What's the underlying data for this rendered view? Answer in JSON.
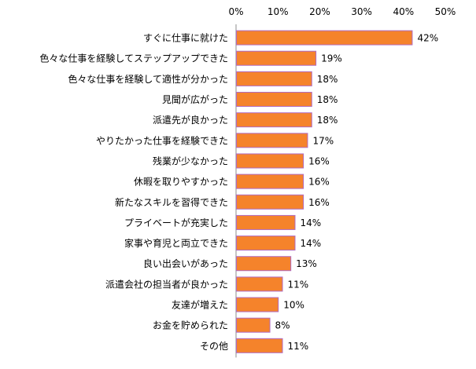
{
  "chart_data": {
    "type": "bar",
    "orientation": "horizontal",
    "title": "",
    "xlabel": "",
    "ylabel": "",
    "xlim": [
      0,
      50
    ],
    "x_ticks": [
      "0%",
      "10%",
      "20%",
      "30%",
      "40%",
      "50%"
    ],
    "x_tick_values": [
      0,
      10,
      20,
      30,
      40,
      50
    ],
    "axis_position": "top",
    "grid": false,
    "bar_color": "#F5832B",
    "bar_edge_color": "#B06AC0",
    "categories": [
      "すぐに仕事に就けた",
      "色々な仕事を経験してステップアップできた",
      "色々な仕事を経験して適性が分かった",
      "見聞が広がった",
      "派遣先が良かった",
      "やりたかった仕事を経験できた",
      "残業が少なかった",
      "休暇を取りやすかった",
      "新たなスキルを習得できた",
      "プライベートが充実した",
      "家事や育児と両立できた",
      "良い出会いがあった",
      "派遣会社の担当者が良かった",
      "友達が増えた",
      "お金を貯められた",
      "その他"
    ],
    "values": [
      42,
      19,
      18,
      18,
      18,
      17,
      16,
      16,
      16,
      14,
      14,
      13,
      11,
      10,
      8,
      11
    ],
    "data_labels": [
      "42%",
      "19%",
      "18%",
      "18%",
      "18%",
      "17%",
      "16%",
      "16%",
      "16%",
      "14%",
      "14%",
      "13%",
      "11%",
      "10%",
      "8%",
      "11%"
    ]
  }
}
